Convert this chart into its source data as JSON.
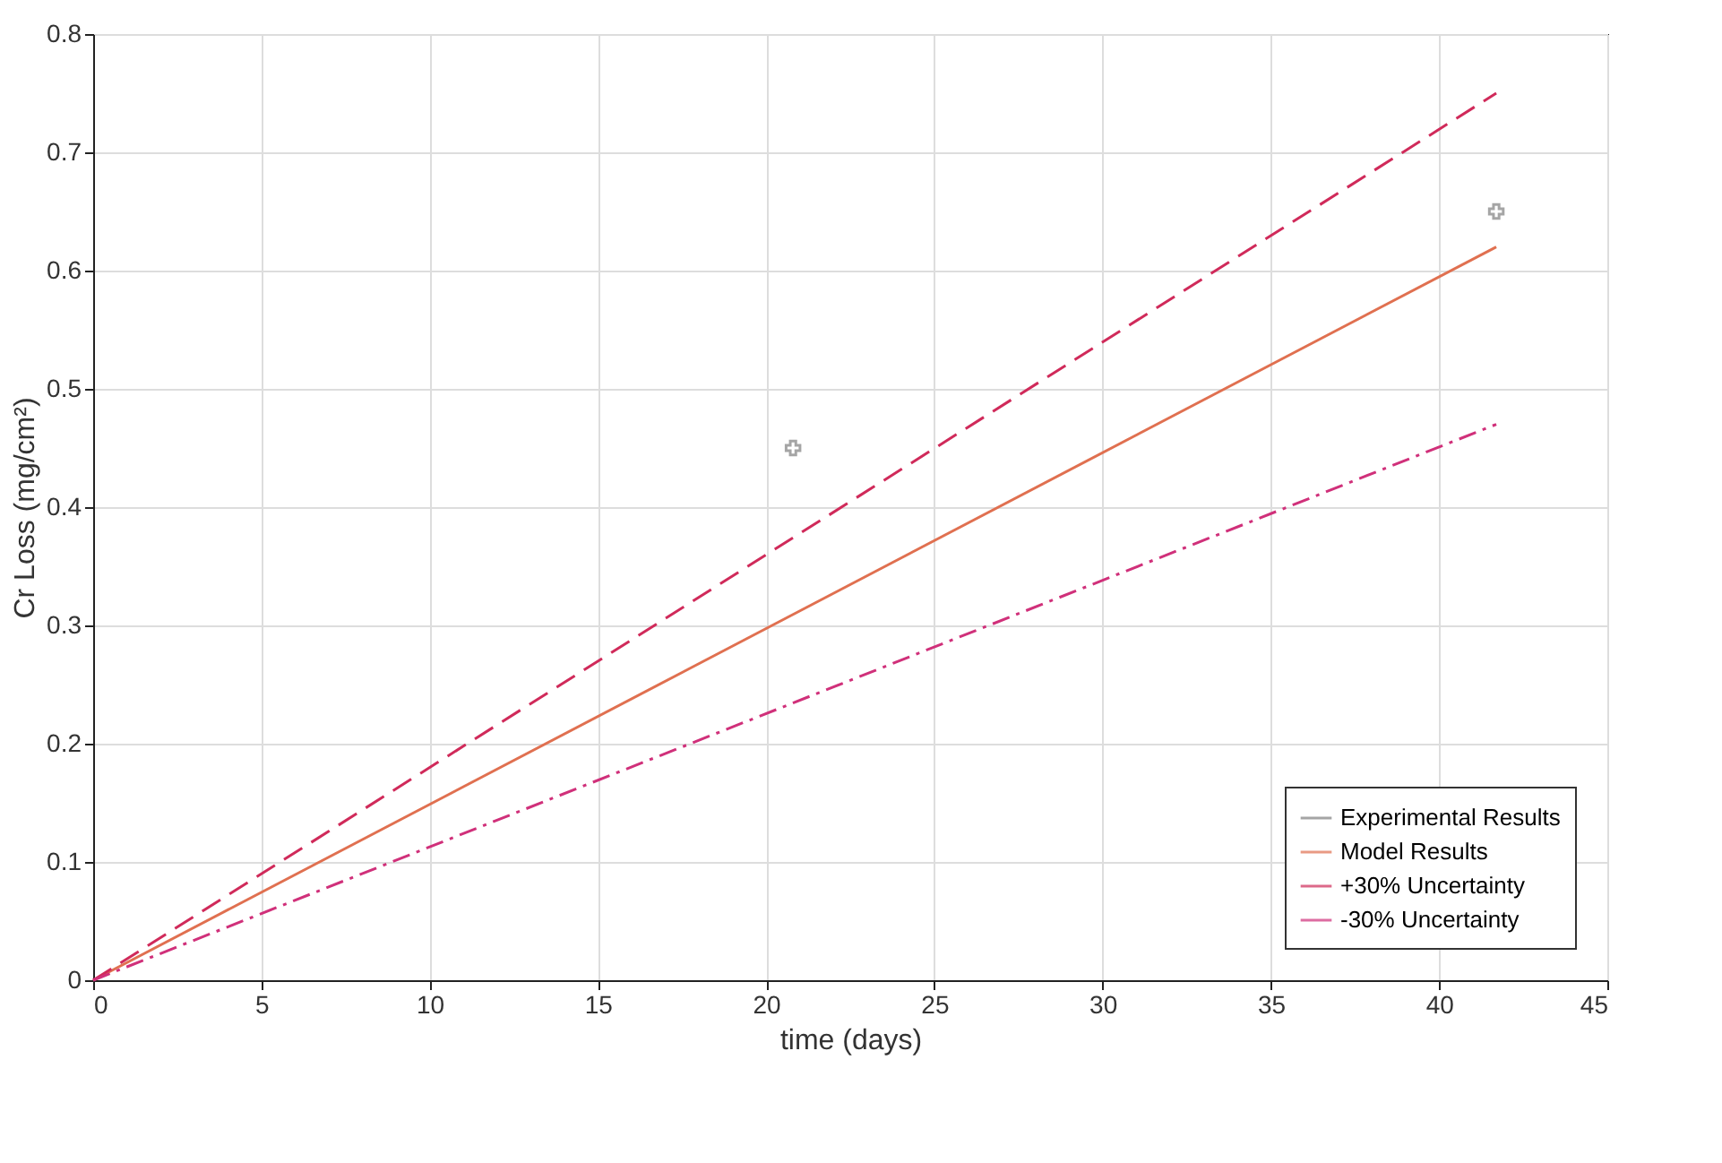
{
  "chart_data": {
    "type": "line",
    "xlabel": "time (days)",
    "ylabel": "Cr Loss (mg/cm²)",
    "xlim": [
      0,
      45
    ],
    "xticks": [
      0,
      5,
      10,
      15,
      20,
      25,
      30,
      35,
      40,
      45
    ],
    "ylim": [
      0,
      0.8
    ],
    "yticks": [
      0,
      0.1,
      0.2,
      0.3,
      0.4,
      0.5,
      0.6,
      0.7,
      0.8
    ],
    "grid": true,
    "legend": "bottom right",
    "series": [
      {
        "name": "Experimental Results",
        "type": "scatter",
        "marker": "cross",
        "color": "#808080",
        "x": [
          20.8,
          41.7
        ],
        "values": [
          0.45,
          0.65
        ]
      },
      {
        "name": "Model Results",
        "line_style": "solid",
        "color": "#e07050",
        "x": [
          0,
          41.7
        ],
        "values": [
          0,
          0.62
        ]
      },
      {
        "name": "+30% Uncertainty",
        "line_style": "dashed",
        "color": "#d02a5a",
        "x": [
          0,
          41.7
        ],
        "values": [
          0,
          0.75
        ]
      },
      {
        "name": "-30% Uncertainty",
        "line_style": "dashdot",
        "color": "#d0307a",
        "x": [
          0,
          41.7
        ],
        "values": [
          0,
          0.47
        ]
      }
    ]
  }
}
